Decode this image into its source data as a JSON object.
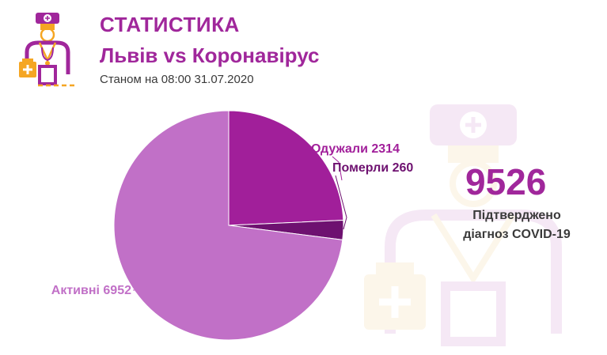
{
  "header": {
    "title": "СТАТИСТИКА",
    "subtitle": "Львів vs Коронавірус",
    "as_of": "Станом на 08:00 31.07.2020"
  },
  "summary": {
    "total_value": "9526",
    "total_label_line1": "Підтверджено",
    "total_label_line2": "діагноз COVID-19"
  },
  "colors": {
    "brand": "#a0279b",
    "text_dark": "#3a3a3a",
    "recovered": "#a11f9a",
    "died": "#6e1170",
    "active": "#c170c7",
    "icon_orange": "#f5a623"
  },
  "icons": [
    "doctor-logo-icon",
    "doctor-watermark-icon"
  ],
  "chart_data": {
    "type": "pie",
    "title": "",
    "slices": [
      {
        "name": "Одужали",
        "value": 2314,
        "label": "Одужали 2314",
        "color": "#a11f9a"
      },
      {
        "name": "Померли",
        "value": 260,
        "label": "Померли 260",
        "color": "#6e1170"
      },
      {
        "name": "Активні",
        "value": 6952,
        "label": "Активні 6952",
        "color": "#c170c7"
      }
    ],
    "start": "12 o'clock",
    "direction": "clockwise"
  }
}
